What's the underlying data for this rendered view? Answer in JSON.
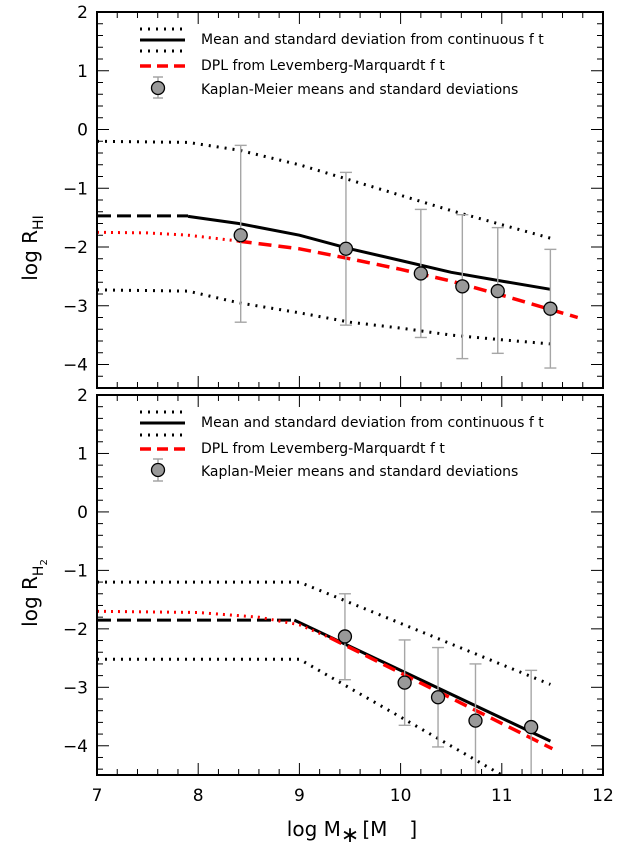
{
  "chart_data": [
    {
      "type": "line",
      "panel": "top",
      "ylabel": "log R_HI",
      "ylabel_main": "log R",
      "ylabel_sub": "HI",
      "xlim": [
        7,
        12
      ],
      "ylim": [
        -4.4,
        2
      ],
      "yticks": [
        "2",
        "1",
        "0",
        "−1",
        "−2",
        "−3",
        "−4"
      ],
      "legend": {
        "placement": "top-right",
        "entries": [
          "Mean and standard deviation from continuous f t",
          "DPL from Levemberg-Marquardt f t",
          "Kaplan-Meier means and standard deviations"
        ]
      },
      "series": [
        {
          "name": "mean_extrap",
          "x": [
            7.0,
            7.9
          ],
          "y": [
            -1.47,
            -1.47
          ]
        },
        {
          "name": "mean",
          "x": [
            7.9,
            8.4,
            9.0,
            9.5,
            10.0,
            10.5,
            11.0,
            11.48
          ],
          "y": [
            -1.48,
            -1.6,
            -1.8,
            -2.03,
            -2.23,
            -2.43,
            -2.58,
            -2.72
          ]
        },
        {
          "name": "upper_std",
          "x": [
            7.0,
            7.9,
            8.4,
            9.0,
            9.5,
            10.0,
            10.5,
            11.0,
            11.48
          ],
          "y": [
            -0.2,
            -0.22,
            -0.35,
            -0.6,
            -0.86,
            -1.12,
            -1.38,
            -1.62,
            -1.85
          ]
        },
        {
          "name": "lower_std",
          "x": [
            7.0,
            7.9,
            8.4,
            9.0,
            9.5,
            10.0,
            10.5,
            11.0,
            11.48
          ],
          "y": [
            -2.73,
            -2.75,
            -2.95,
            -3.12,
            -3.28,
            -3.38,
            -3.5,
            -3.58,
            -3.65
          ]
        },
        {
          "name": "dpl_extrap",
          "x": [
            7.0,
            7.5,
            7.9,
            8.4
          ],
          "y": [
            -1.75,
            -1.76,
            -1.8,
            -1.9
          ]
        },
        {
          "name": "dpl",
          "x": [
            8.4,
            9.0,
            9.5,
            10.0,
            10.5,
            11.0,
            11.75
          ],
          "y": [
            -1.9,
            -2.03,
            -2.2,
            -2.38,
            -2.58,
            -2.82,
            -3.2
          ]
        }
      ],
      "points": [
        {
          "x": 8.42,
          "y": -1.8,
          "lo": -3.28,
          "hi": -0.27
        },
        {
          "x": 9.46,
          "y": -2.03,
          "lo": -3.33,
          "hi": -0.73
        },
        {
          "x": 10.2,
          "y": -2.45,
          "lo": -3.54,
          "hi": -1.36
        },
        {
          "x": 10.61,
          "y": -2.67,
          "lo": -3.9,
          "hi": -1.45
        },
        {
          "x": 10.96,
          "y": -2.75,
          "lo": -3.81,
          "hi": -1.67
        },
        {
          "x": 11.48,
          "y": -3.05,
          "lo": -4.06,
          "hi": -2.04
        }
      ]
    },
    {
      "type": "line",
      "panel": "bottom",
      "ylabel": "log R_H2",
      "ylabel_main": "log R",
      "ylabel_sub": "H",
      "ylabel_subsub": "2",
      "xlabel_main": "log M",
      "xlabel_sub": "∗",
      "xlabel_rest": "[M",
      "xlabel_close": "]",
      "xlim": [
        7,
        12
      ],
      "ylim": [
        -4.5,
        2
      ],
      "xticks": [
        "7",
        "8",
        "9",
        "10",
        "11",
        "12"
      ],
      "yticks": [
        "2",
        "1",
        "0",
        "−1",
        "−2",
        "−3",
        "−4"
      ],
      "legend": {
        "placement": "top-right",
        "entries": [
          "Mean and standard deviation from continuous f t",
          "DPL from Levemberg-Marquardt f t",
          "Kaplan-Meier means and standard deviations"
        ]
      },
      "series": [
        {
          "name": "mean_extrap",
          "x": [
            7.0,
            8.95
          ],
          "y": [
            -1.85,
            -1.85
          ]
        },
        {
          "name": "mean",
          "x": [
            8.95,
            11.48
          ],
          "y": [
            -1.85,
            -3.92
          ]
        },
        {
          "name": "upper_std",
          "x": [
            7.0,
            9.0,
            11.48
          ],
          "y": [
            -1.2,
            -1.2,
            -2.95
          ]
        },
        {
          "name": "lower_std",
          "x": [
            7.0,
            9.0,
            11.0
          ],
          "y": [
            -2.52,
            -2.52,
            -4.5
          ]
        },
        {
          "name": "dpl_extrap",
          "x": [
            7.0,
            8.0,
            8.6,
            9.0,
            9.3
          ],
          "y": [
            -1.7,
            -1.72,
            -1.8,
            -1.93,
            -2.15
          ]
        },
        {
          "name": "dpl",
          "x": [
            9.3,
            11.5
          ],
          "y": [
            -2.15,
            -4.05
          ]
        }
      ],
      "points": [
        {
          "x": 9.45,
          "y": -2.13,
          "lo": -2.87,
          "hi": -1.4
        },
        {
          "x": 10.04,
          "y": -2.92,
          "lo": -3.65,
          "hi": -2.19
        },
        {
          "x": 10.37,
          "y": -3.17,
          "lo": -4.02,
          "hi": -2.32
        },
        {
          "x": 10.74,
          "y": -3.57,
          "lo": -4.5,
          "hi": -2.6
        },
        {
          "x": 11.29,
          "y": -3.68,
          "lo": -4.5,
          "hi": -2.71
        }
      ]
    }
  ]
}
